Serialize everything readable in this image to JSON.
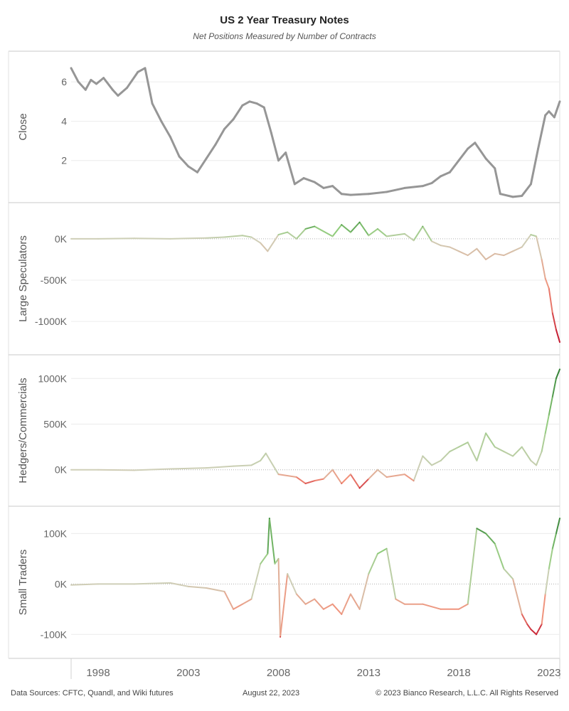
{
  "title": "US 2 Year Treasury Notes",
  "subtitle": "Net Positions Measured by Number of Contracts",
  "footer": {
    "sources": "Data Sources: CFTC, Quandl, and Wiki futures",
    "date": "August 22, 2023",
    "copyright": "© 2023 Bianco Research, L.L.C. All Rights Reserved"
  },
  "chart_data": {
    "type": "line",
    "x_axis": {
      "range": [
        1996.5,
        2023.6
      ],
      "ticks": [
        1998,
        2003,
        2008,
        2013,
        2018,
        2023
      ],
      "tick_labels": [
        "1998",
        "2003",
        "2008",
        "2013",
        "2018",
        "2023"
      ]
    },
    "panels": [
      {
        "name": "close",
        "ylabel": "Close",
        "ylim": [
          0,
          7.2
        ],
        "ticks": [
          2,
          4,
          6
        ],
        "tick_labels": [
          "2",
          "4",
          "6"
        ],
        "zero_line": false,
        "color": "#969696",
        "x": [
          1996.5,
          1996.9,
          1997.3,
          1997.6,
          1997.9,
          1998.3,
          1998.8,
          1999.1,
          1999.6,
          2000.2,
          2000.6,
          2001.0,
          2001.5,
          2002.0,
          2002.5,
          2003.0,
          2003.5,
          2004.0,
          2004.5,
          2005.0,
          2005.5,
          2006.0,
          2006.4,
          2006.8,
          2007.2,
          2007.6,
          2008.0,
          2008.4,
          2008.9,
          2009.4,
          2010.0,
          2010.5,
          2011.0,
          2011.5,
          2012.0,
          2013.0,
          2014.0,
          2015.0,
          2016.0,
          2016.5,
          2017.0,
          2017.5,
          2018.0,
          2018.5,
          2018.9,
          2019.5,
          2020.0,
          2020.3,
          2021.0,
          2021.5,
          2022.0,
          2022.4,
          2022.8,
          2023.0,
          2023.3,
          2023.6
        ],
        "values": [
          6.7,
          6.0,
          5.6,
          6.1,
          5.9,
          6.2,
          5.6,
          5.3,
          5.7,
          6.5,
          6.7,
          4.9,
          4.0,
          3.2,
          2.2,
          1.7,
          1.4,
          2.1,
          2.8,
          3.6,
          4.1,
          4.8,
          5.0,
          4.9,
          4.7,
          3.4,
          2.0,
          2.4,
          0.8,
          1.1,
          0.9,
          0.6,
          0.7,
          0.3,
          0.25,
          0.3,
          0.4,
          0.6,
          0.7,
          0.85,
          1.2,
          1.4,
          2.0,
          2.6,
          2.9,
          2.1,
          1.6,
          0.3,
          0.15,
          0.2,
          0.8,
          2.6,
          4.3,
          4.5,
          4.2,
          5.0
        ]
      },
      {
        "name": "large-speculators",
        "ylabel": "Large Speculators",
        "ylim": [
          -1300,
          300
        ],
        "ticks": [
          0,
          -500,
          -1000
        ],
        "tick_labels": [
          "0K",
          "-500K",
          "-1000K"
        ],
        "zero_line": true,
        "x": [
          1996.5,
          1998.0,
          2000.0,
          2002.0,
          2004.0,
          2005.0,
          2006.0,
          2006.5,
          2007.0,
          2007.4,
          2008.0,
          2008.5,
          2009.0,
          2009.5,
          2010.0,
          2011.0,
          2011.5,
          2012.0,
          2012.5,
          2013.0,
          2013.5,
          2014.0,
          2015.0,
          2015.5,
          2016.0,
          2016.5,
          2017.0,
          2017.5,
          2018.0,
          2018.5,
          2019.0,
          2019.5,
          2020.0,
          2020.5,
          2021.0,
          2021.5,
          2022.0,
          2022.3,
          2022.6,
          2022.8,
          2023.0,
          2023.2,
          2023.4,
          2023.6
        ],
        "values": [
          0,
          0,
          5,
          0,
          10,
          20,
          40,
          20,
          -50,
          -150,
          50,
          80,
          0,
          120,
          150,
          30,
          170,
          80,
          200,
          40,
          120,
          30,
          60,
          -20,
          150,
          -30,
          -80,
          -100,
          -150,
          -200,
          -120,
          -250,
          -180,
          -200,
          -150,
          -100,
          50,
          30,
          -250,
          -480,
          -600,
          -900,
          -1100,
          -1250
        ],
        "values_in": "thousands of contracts"
      },
      {
        "name": "hedgers-commercials",
        "ylabel": "Hedgers/Commercials",
        "ylim": [
          -290,
          1150
        ],
        "ticks": [
          0,
          500,
          1000
        ],
        "tick_labels": [
          "0K",
          "500K",
          "1000K"
        ],
        "zero_line": true,
        "x": [
          1996.5,
          1998.0,
          2000.0,
          2002.0,
          2004.0,
          2005.5,
          2006.5,
          2007.0,
          2007.3,
          2008.0,
          2009.0,
          2009.5,
          2010.0,
          2010.5,
          2011.0,
          2011.5,
          2012.0,
          2012.5,
          2013.0,
          2013.5,
          2014.0,
          2015.0,
          2015.5,
          2016.0,
          2016.5,
          2017.0,
          2017.5,
          2018.0,
          2018.5,
          2019.0,
          2019.5,
          2020.0,
          2020.5,
          2021.0,
          2021.5,
          2022.0,
          2022.3,
          2022.6,
          2022.8,
          2023.0,
          2023.2,
          2023.4,
          2023.6
        ],
        "values": [
          0,
          0,
          -5,
          10,
          20,
          40,
          50,
          100,
          180,
          -50,
          -80,
          -150,
          -120,
          -100,
          0,
          -150,
          -50,
          -200,
          -100,
          0,
          -80,
          -50,
          -120,
          150,
          50,
          100,
          200,
          250,
          300,
          100,
          400,
          250,
          200,
          150,
          250,
          100,
          50,
          200,
          400,
          600,
          800,
          1000,
          1100
        ],
        "values_in": "thousands of contracts"
      },
      {
        "name": "small-traders",
        "ylabel": "Small Traders",
        "ylim": [
          -125,
          140
        ],
        "ticks": [
          100,
          0,
          -100
        ],
        "tick_labels": [
          "100K",
          "0K",
          "-100K"
        ],
        "zero_line": true,
        "x": [
          1996.5,
          1998.0,
          2000.0,
          2002.0,
          2003.0,
          2004.0,
          2005.0,
          2005.5,
          2006.0,
          2006.5,
          2007.0,
          2007.4,
          2007.5,
          2007.8,
          2008.0,
          2008.1,
          2008.5,
          2009.0,
          2009.5,
          2010.0,
          2010.5,
          2011.0,
          2011.5,
          2012.0,
          2012.5,
          2013.0,
          2013.5,
          2014.0,
          2014.5,
          2015.0,
          2016.0,
          2017.0,
          2018.0,
          2018.5,
          2019.0,
          2019.5,
          2020.0,
          2020.5,
          2021.0,
          2021.5,
          2021.8,
          2022.0,
          2022.3,
          2022.6,
          2022.8,
          2023.0,
          2023.2,
          2023.4,
          2023.6
        ],
        "values": [
          -2,
          0,
          0,
          2,
          -5,
          -8,
          -15,
          -50,
          -40,
          -30,
          40,
          60,
          130,
          40,
          50,
          -105,
          20,
          -20,
          -40,
          -30,
          -50,
          -40,
          -60,
          -20,
          -50,
          20,
          60,
          70,
          -30,
          -40,
          -40,
          -50,
          -50,
          -40,
          110,
          100,
          80,
          30,
          10,
          -60,
          -80,
          -90,
          -100,
          -80,
          -20,
          30,
          70,
          100,
          130
        ],
        "values_in": "thousands of contracts"
      }
    ]
  }
}
